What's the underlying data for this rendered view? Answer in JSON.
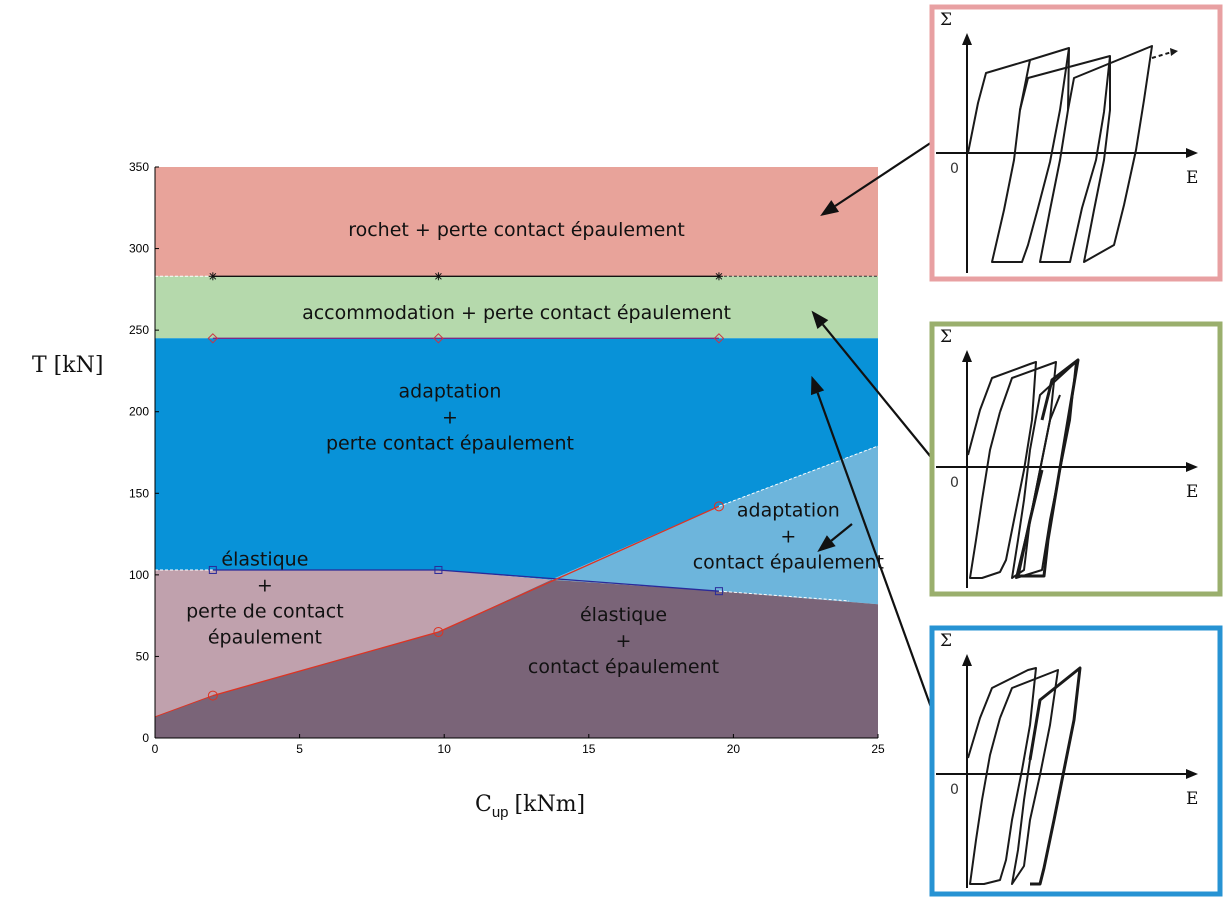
{
  "chart_data": {
    "type": "area",
    "xlabel": "C",
    "xlabel_sub": "up",
    "xlabel_unit": "[kNm]",
    "ylabel": "T  [kN]",
    "xlim": [
      0,
      25
    ],
    "ylim": [
      0,
      350
    ],
    "xticks": [
      "0",
      "5",
      "10",
      "15",
      "20",
      "25"
    ],
    "yticks": [
      "0",
      "50",
      "100",
      "150",
      "200",
      "250",
      "300",
      "350"
    ],
    "regions": [
      {
        "name": "rochet",
        "label_lines": [
          "rochet + perte contact épaulement"
        ],
        "color": "#e8a39a",
        "polygon": [
          [
            0,
            283
          ],
          [
            25,
            283
          ],
          [
            25,
            350
          ],
          [
            0,
            350
          ]
        ],
        "label_at": [
          12.5,
          312
        ]
      },
      {
        "name": "accommodation",
        "label_lines": [
          "accommodation + perte contact épaulement"
        ],
        "color": "#b5d9ac",
        "polygon": [
          [
            0,
            245
          ],
          [
            25,
            245
          ],
          [
            25,
            283
          ],
          [
            0,
            283
          ]
        ],
        "label_at": [
          12.5,
          261
        ]
      },
      {
        "name": "adaptation-perte",
        "label_lines": [
          "adaptation",
          "+",
          "perte contact épaulement"
        ],
        "color": "#0892d8",
        "polygon": [
          [
            0,
            103
          ],
          [
            9.8,
            103
          ],
          [
            13.7,
            97
          ],
          [
            19.5,
            142
          ],
          [
            25,
            179
          ],
          [
            25,
            245
          ],
          [
            0,
            245
          ]
        ],
        "label_at": [
          10.2,
          197
        ]
      },
      {
        "name": "adaptation-contact",
        "label_lines": [
          "adaptation",
          "+",
          "contact épaulement"
        ],
        "color": "#6db5dc",
        "polygon": [
          [
            13.7,
            97
          ],
          [
            19.5,
            90
          ],
          [
            25,
            82
          ],
          [
            25,
            179
          ],
          [
            19.5,
            142
          ]
        ],
        "label_at": [
          21.9,
          124
        ]
      },
      {
        "name": "elastique-perte",
        "label_lines": [
          "élastique",
          "+",
          "perte de contact",
          "épaulement"
        ],
        "color": "#c0a1ad",
        "polygon": [
          [
            0,
            13
          ],
          [
            2,
            26
          ],
          [
            9.8,
            65
          ],
          [
            13.7,
            97
          ],
          [
            9.8,
            103
          ],
          [
            0,
            103
          ]
        ],
        "label_at": [
          3.8,
          86
        ]
      },
      {
        "name": "elastique-contact",
        "label_lines": [
          "élastique",
          "+",
          "contact épaulement"
        ],
        "color": "#7a6478",
        "polygon": [
          [
            0,
            0
          ],
          [
            25,
            0
          ],
          [
            25,
            82
          ],
          [
            19.5,
            90
          ],
          [
            13.7,
            97
          ],
          [
            9.8,
            65
          ],
          [
            2,
            26
          ],
          [
            0,
            13
          ]
        ],
        "label_at": [
          16.2,
          60
        ]
      }
    ],
    "series": [
      {
        "marker": "star",
        "color": "#111111",
        "x": [
          2,
          9.8,
          19.5
        ],
        "y": [
          283,
          283,
          283
        ],
        "extend": [
          0,
          25,
          283,
          283
        ]
      },
      {
        "marker": "diamond",
        "color": "#cc3344",
        "line_color": "#7a2a88",
        "x": [
          2,
          9.8,
          19.5
        ],
        "y": [
          245,
          245,
          245
        ]
      },
      {
        "marker": "square",
        "color": "#2a2a99",
        "x": [
          2,
          9.8,
          19.5
        ],
        "y": [
          103,
          103,
          90
        ],
        "extend": [
          0,
          103,
          25,
          84
        ]
      },
      {
        "marker": "circle",
        "color": "#dd3322",
        "x": [
          2,
          9.8,
          19.5
        ],
        "y": [
          26,
          65,
          142
        ],
        "extend": [
          0,
          13,
          25,
          179
        ]
      }
    ]
  },
  "insets": [
    {
      "name": "inset-rochet",
      "border": "#e8a0a2",
      "sigma": "Σ",
      "e": "E",
      "zero": "0",
      "target": [
        23,
        320
      ]
    },
    {
      "name": "inset-accommodation",
      "border": "#9aaf6d",
      "sigma": "Σ",
      "e": "E",
      "zero": "0",
      "target": [
        22.7,
        262
      ]
    },
    {
      "name": "inset-adaptation",
      "border": "#2793d3",
      "sigma": "Σ",
      "e": "E",
      "zero": "0",
      "target": [
        22.7,
        222
      ]
    }
  ],
  "adapt_arrow_target": [
    22.9,
    114
  ]
}
